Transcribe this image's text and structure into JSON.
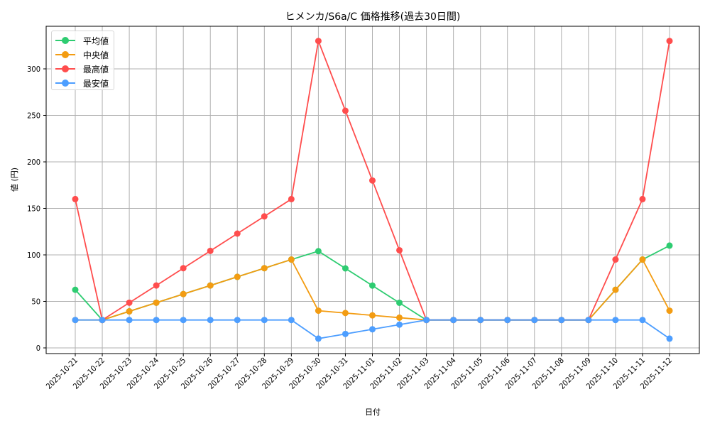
{
  "title": "ヒメンカ/S6a/C 価格推移(過去30日間)",
  "chart_data": {
    "type": "line",
    "title": "ヒメンカ/S6a/C 価格推移(過去30日間)",
    "xlabel": "日付",
    "ylabel": "値 (円)",
    "ylim": [
      -7,
      343
    ],
    "yticks": [
      0,
      50,
      100,
      150,
      200,
      250,
      300
    ],
    "grid": true,
    "legend_position": "upper left",
    "x": [
      "2025-10-21",
      "2025-10-22",
      "2025-10-23",
      "2025-10-24",
      "2025-10-25",
      "2025-10-26",
      "2025-10-27",
      "2025-10-28",
      "2025-10-29",
      "2025-10-30",
      "2025-10-31",
      "2025-11-01",
      "2025-11-02",
      "2025-11-03",
      "2025-11-04",
      "2025-11-05",
      "2025-11-06",
      "2025-11-07",
      "2025-11-08",
      "2025-11-09",
      "2025-11-10",
      "2025-11-11",
      "2025-11-12"
    ],
    "series": [
      {
        "name": "平均値",
        "color": "#2ecc71",
        "values": [
          62.5,
          30,
          39.3,
          48.6,
          57.9,
          67.1,
          76.4,
          85.7,
          95,
          104,
          85.5,
          67,
          48.5,
          30,
          30,
          30,
          30,
          30,
          30,
          30,
          62.5,
          95,
          110
        ]
      },
      {
        "name": "中央値",
        "color": "#f39c12",
        "values": [
          30,
          30,
          39.3,
          48.6,
          57.9,
          67.1,
          76.4,
          85.7,
          95,
          40,
          37.5,
          35,
          32.5,
          30,
          30,
          30,
          30,
          30,
          30,
          30,
          62.5,
          95,
          40
        ]
      },
      {
        "name": "最高値",
        "color": "#ff4d4d",
        "values": [
          160,
          30,
          48.6,
          67.1,
          85.7,
          104.3,
          122.9,
          141.4,
          160,
          330,
          255,
          180,
          105,
          30,
          30,
          30,
          30,
          30,
          30,
          30,
          95,
          160,
          330
        ]
      },
      {
        "name": "最安値",
        "color": "#4d9eff",
        "values": [
          30,
          30,
          30,
          30,
          30,
          30,
          30,
          30,
          30,
          10,
          15,
          20,
          25,
          30,
          30,
          30,
          30,
          30,
          30,
          30,
          30,
          30,
          10
        ]
      }
    ]
  }
}
